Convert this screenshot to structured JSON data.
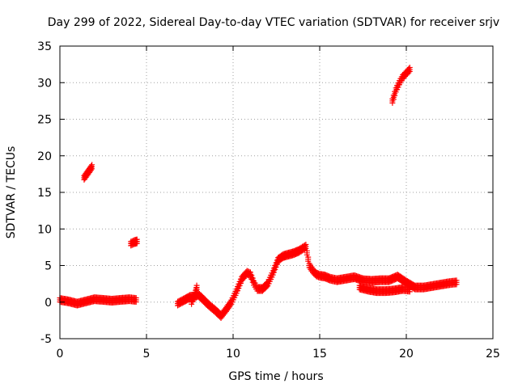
{
  "chart_data": {
    "type": "scatter",
    "title": "Day 299 of 2022, Sidereal Day-to-day VTEC variation (SDTVAR) for receiver srjv",
    "xlabel": "GPS time / hours",
    "ylabel": "SDTVAR / TECUs",
    "xlim": [
      0,
      25
    ],
    "ylim": [
      -5,
      35
    ],
    "xticks": [
      0,
      5,
      10,
      15,
      20,
      25
    ],
    "yticks": [
      -5,
      0,
      5,
      10,
      15,
      20,
      25,
      30,
      35
    ],
    "grid": true,
    "marker": "+",
    "color": "#ff0000",
    "series": [
      {
        "name": "SDTVAR",
        "segments": [
          {
            "x": [
              0.0,
              0.5,
              1.0,
              1.5,
              2.0,
              2.5,
              3.0,
              3.5,
              4.0,
              4.4
            ],
            "y": [
              0.3,
              0.1,
              -0.2,
              0.1,
              0.4,
              0.3,
              0.2,
              0.3,
              0.4,
              0.3
            ]
          },
          {
            "x": [
              1.4,
              1.55,
              1.7,
              1.85
            ],
            "y": [
              17.0,
              17.5,
              18.0,
              18.5
            ]
          },
          {
            "x": [
              4.1,
              4.3,
              4.45
            ],
            "y": [
              8.0,
              8.2,
              8.3
            ]
          },
          {
            "x": [
              6.8,
              7.2,
              7.5,
              7.8,
              8.0,
              8.3,
              8.6,
              9.0,
              9.3,
              9.6,
              9.9,
              10.2,
              10.5,
              10.8,
              11.0,
              11.2,
              11.4,
              11.7,
              12.0,
              12.3,
              12.6,
              12.9,
              13.2,
              13.5,
              13.8,
              14.0,
              14.2,
              14.4,
              14.6,
              14.8,
              15.0,
              15.3,
              15.6,
              16.0,
              16.5,
              17.0,
              17.5,
              18.0,
              18.5,
              19.0,
              19.5,
              20.0,
              20.5,
              21.0,
              21.5,
              22.0,
              22.5,
              22.9
            ],
            "y": [
              -0.2,
              0.3,
              0.7,
              0.8,
              1.0,
              0.3,
              -0.4,
              -1.2,
              -1.9,
              -1.0,
              0.0,
              1.5,
              3.2,
              4.0,
              3.8,
              2.6,
              1.8,
              1.8,
              2.5,
              4.0,
              5.8,
              6.3,
              6.5,
              6.7,
              7.0,
              7.3,
              7.6,
              5.0,
              4.3,
              3.8,
              3.6,
              3.5,
              3.2,
              3.0,
              3.2,
              3.4,
              3.0,
              2.9,
              3.0,
              3.0,
              3.5,
              2.7,
              2.0,
              2.0,
              2.2,
              2.4,
              2.6,
              2.7
            ]
          },
          {
            "x": [
              17.3,
              17.8,
              18.3,
              18.8,
              19.3,
              19.8,
              20.2
            ],
            "y": [
              2.0,
              1.7,
              1.5,
              1.5,
              1.6,
              1.8,
              1.7
            ]
          },
          {
            "x": [
              7.6,
              7.8,
              7.9
            ],
            "y": [
              0.0,
              1.0,
              2.0
            ]
          },
          {
            "x": [
              19.2,
              19.4,
              19.6,
              19.8,
              20.0,
              20.2
            ],
            "y": [
              27.5,
              29.0,
              30.0,
              30.8,
              31.3,
              31.8
            ]
          }
        ]
      }
    ]
  }
}
